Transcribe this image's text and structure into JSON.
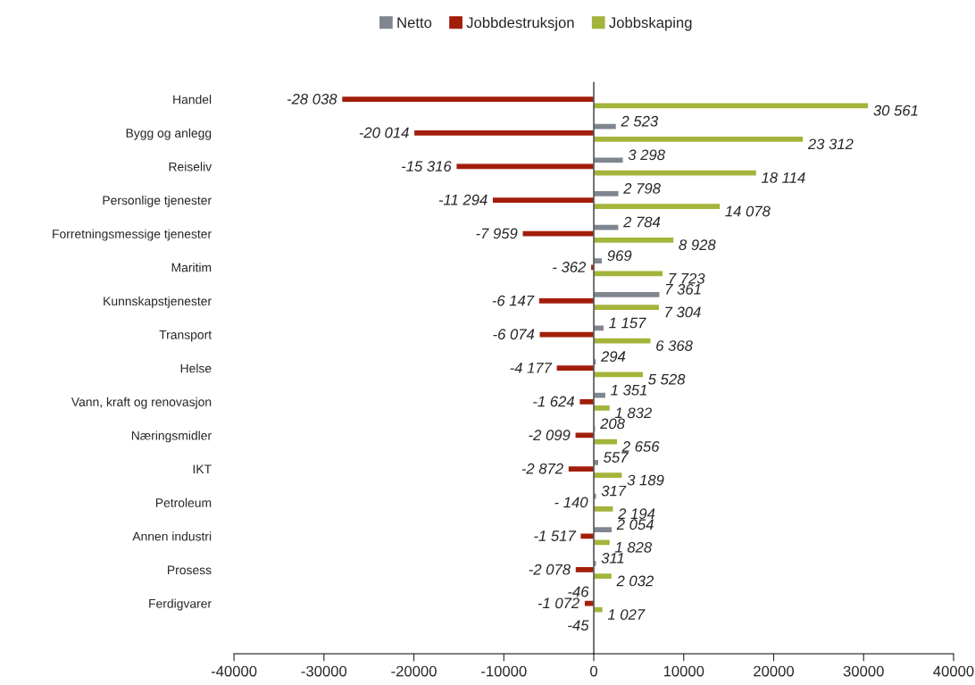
{
  "chart_data": {
    "type": "bar",
    "orientation": "horizontal",
    "legend": "top",
    "categories": [
      "Handel",
      "Bygg og anlegg",
      "Reiseliv",
      "Personlige tjenester",
      "Forretningsmessige tjenester",
      "Maritim",
      "Kunnskapstjenester",
      "Transport",
      "Helse",
      "Vann, kraft og renovasjon",
      "Næringsmidler",
      "IKT",
      "Petroleum",
      "Annen industri",
      "Prosess",
      "Ferdigvarer",
      null
    ],
    "series": [
      {
        "name": "Netto",
        "color": "#7f8690",
        "values": [
          null,
          2523,
          3298,
          2798,
          2784,
          969,
          7361,
          1157,
          294,
          1351,
          208,
          557,
          317,
          2054,
          311,
          -46,
          -45
        ],
        "value_labels": [
          null,
          "2 523",
          "3 298",
          "2 798",
          "2 784",
          "969",
          "7 361",
          "1 157",
          "294",
          "1 351",
          "208",
          "557",
          "317",
          "2 054",
          "311",
          "-46",
          "-45"
        ]
      },
      {
        "name": "Jobbdestruksjon",
        "color": "#a21e0b",
        "values": [
          -28038,
          -20014,
          -15316,
          -11294,
          -7959,
          -362,
          -6147,
          -6074,
          -4177,
          -1624,
          -2099,
          -2872,
          -140,
          -1517,
          -2078,
          -1072,
          null
        ],
        "value_labels": [
          "-28 038",
          "-20 014",
          "-15 316",
          "-11 294",
          "-7 959",
          "- 362",
          "-6 147",
          "-6 074",
          "-4 177",
          "-1 624",
          "-2 099",
          "-2 872",
          "- 140",
          "-1 517",
          "-2 078",
          "-1 072",
          null
        ]
      },
      {
        "name": "Jobbskaping",
        "color": "#a4b43b",
        "values": [
          30561,
          23312,
          18114,
          14078,
          8928,
          7723,
          7304,
          6368,
          5528,
          1832,
          2656,
          3189,
          2194,
          1828,
          2032,
          1027,
          null
        ],
        "value_labels": [
          "30 561",
          "23 312",
          "18 114",
          "14 078",
          "8 928",
          "7 723",
          "7 304",
          "6 368",
          "5 528",
          "1 832",
          "2 656",
          "3 189",
          "2 194",
          "1 828",
          "2 032",
          "1 027",
          null
        ]
      }
    ],
    "xlim": [
      -40000,
      40000
    ],
    "xticks": [
      -40000,
      -30000,
      -20000,
      -10000,
      0,
      10000,
      20000,
      30000,
      40000
    ]
  }
}
